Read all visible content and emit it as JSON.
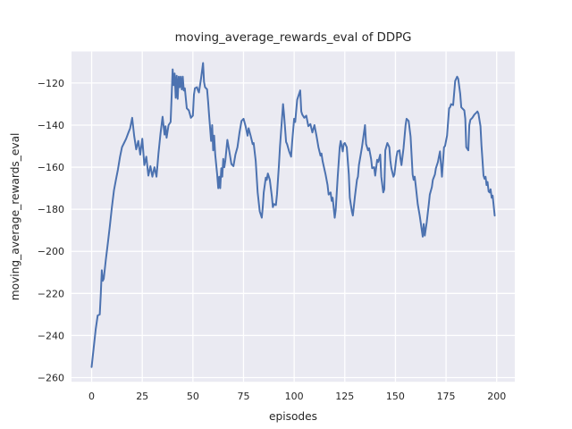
{
  "figure": {
    "background": "#ffffff"
  },
  "chart_data": {
    "type": "line",
    "title": "moving_average_rewards_eval of DDPG",
    "xlabel": "episodes",
    "ylabel": "moving_average_rewards_eval",
    "legend": null,
    "grid": true,
    "plot_bg": "#eaeaf2",
    "grid_color": "#ffffff",
    "line_color": "#4c72b0",
    "text_color": "#262626",
    "xlim": [
      -9.95,
      208.95
    ],
    "ylim": [
      -262,
      -105
    ],
    "xticks": [
      0,
      25,
      50,
      75,
      100,
      125,
      150,
      175,
      200
    ],
    "yticks": [
      -260,
      -240,
      -220,
      -200,
      -180,
      -160,
      -140,
      -120
    ],
    "points": [
      [
        0,
        -255
      ],
      [
        1,
        -246
      ],
      [
        2,
        -237
      ],
      [
        3,
        -230.5
      ],
      [
        4,
        -230
      ],
      [
        4.5,
        -221
      ],
      [
        5,
        -209
      ],
      [
        5.5,
        -214
      ],
      [
        6,
        -213
      ],
      [
        7,
        -204
      ],
      [
        8,
        -196
      ],
      [
        9,
        -188
      ],
      [
        10,
        -179
      ],
      [
        11,
        -171
      ],
      [
        12,
        -166
      ],
      [
        13,
        -161
      ],
      [
        14,
        -155
      ],
      [
        15,
        -150.5
      ],
      [
        16,
        -148.5
      ],
      [
        17,
        -146.5
      ],
      [
        18,
        -144
      ],
      [
        19,
        -141.5
      ],
      [
        20,
        -136.5
      ],
      [
        21,
        -145
      ],
      [
        22,
        -151.5
      ],
      [
        23,
        -147.5
      ],
      [
        24,
        -154
      ],
      [
        25,
        -146.5
      ],
      [
        26,
        -159
      ],
      [
        27,
        -155
      ],
      [
        28,
        -164
      ],
      [
        29,
        -159.5
      ],
      [
        30,
        -164.5
      ],
      [
        31,
        -160
      ],
      [
        32,
        -164.5
      ],
      [
        33,
        -153.5
      ],
      [
        34,
        -144
      ],
      [
        35,
        -136
      ],
      [
        36,
        -144.5
      ],
      [
        36.5,
        -140.5
      ],
      [
        37,
        -146
      ],
      [
        38,
        -140
      ],
      [
        39,
        -138.5
      ],
      [
        40,
        -113.5
      ],
      [
        40.5,
        -121
      ],
      [
        41,
        -115.5
      ],
      [
        41.5,
        -127
      ],
      [
        42,
        -116.5
      ],
      [
        42.5,
        -127.5
      ],
      [
        43,
        -117
      ],
      [
        43.5,
        -122
      ],
      [
        44,
        -117
      ],
      [
        44.5,
        -123
      ],
      [
        45,
        -117
      ],
      [
        45.5,
        -123.5
      ],
      [
        46,
        -122.5
      ],
      [
        47,
        -132
      ],
      [
        48,
        -133
      ],
      [
        49,
        -136.5
      ],
      [
        50,
        -135.5
      ],
      [
        50.5,
        -125.5
      ],
      [
        51,
        -122.5
      ],
      [
        52,
        -122
      ],
      [
        52.5,
        -123.5
      ],
      [
        53,
        -124.5
      ],
      [
        54,
        -118
      ],
      [
        55,
        -110.5
      ],
      [
        55.5,
        -119.5
      ],
      [
        56,
        -122
      ],
      [
        57,
        -123
      ],
      [
        57.5,
        -128.5
      ],
      [
        58,
        -135.5
      ],
      [
        59,
        -147.5
      ],
      [
        59.5,
        -140
      ],
      [
        60,
        -152
      ],
      [
        60.5,
        -145
      ],
      [
        61,
        -154
      ],
      [
        62,
        -163.5
      ],
      [
        62.5,
        -170
      ],
      [
        63,
        -164.5
      ],
      [
        63.5,
        -170
      ],
      [
        64,
        -160.5
      ],
      [
        64.5,
        -164.5
      ],
      [
        65,
        -156
      ],
      [
        65.5,
        -160
      ],
      [
        66,
        -157
      ],
      [
        67,
        -147
      ],
      [
        68,
        -152.5
      ],
      [
        69,
        -158.5
      ],
      [
        70,
        -159.5
      ],
      [
        71,
        -154
      ],
      [
        72,
        -150.5
      ],
      [
        73,
        -143.5
      ],
      [
        74,
        -138
      ],
      [
        75,
        -137
      ],
      [
        76,
        -140.5
      ],
      [
        77,
        -145
      ],
      [
        77.5,
        -141.5
      ],
      [
        78.5,
        -145
      ],
      [
        79.5,
        -149
      ],
      [
        80,
        -148.5
      ],
      [
        81,
        -157
      ],
      [
        82,
        -172
      ],
      [
        83,
        -181
      ],
      [
        84,
        -184
      ],
      [
        84.5,
        -179
      ],
      [
        85,
        -172
      ],
      [
        86,
        -165
      ],
      [
        86.5,
        -166
      ],
      [
        87,
        -163
      ],
      [
        88,
        -166
      ],
      [
        89,
        -174
      ],
      [
        89.5,
        -179
      ],
      [
        90,
        -177.5
      ],
      [
        91,
        -178
      ],
      [
        91.5,
        -173
      ],
      [
        92.5,
        -159
      ],
      [
        93,
        -150
      ],
      [
        93.5,
        -143.5
      ],
      [
        94.5,
        -130
      ],
      [
        95,
        -135
      ],
      [
        96,
        -148
      ],
      [
        96.5,
        -149
      ],
      [
        97.5,
        -152.5
      ],
      [
        98.5,
        -155
      ],
      [
        99,
        -148
      ],
      [
        100,
        -137
      ],
      [
        100.5,
        -138.5
      ],
      [
        101.5,
        -128
      ],
      [
        103,
        -123.5
      ],
      [
        103.5,
        -133.5
      ],
      [
        104,
        -135
      ],
      [
        105,
        -136.5
      ],
      [
        106,
        -135.5
      ],
      [
        107,
        -140.5
      ],
      [
        108,
        -139.5
      ],
      [
        109,
        -143.5
      ],
      [
        110,
        -140
      ],
      [
        111,
        -145
      ],
      [
        112,
        -150.5
      ],
      [
        113,
        -154.5
      ],
      [
        113.5,
        -153.5
      ],
      [
        114,
        -157
      ],
      [
        115.5,
        -163.5
      ],
      [
        116.5,
        -168.5
      ],
      [
        117,
        -173
      ],
      [
        118,
        -172
      ],
      [
        118.5,
        -176
      ],
      [
        119,
        -174.5
      ],
      [
        120,
        -184
      ],
      [
        120.5,
        -180.5
      ],
      [
        121.5,
        -165
      ],
      [
        122.5,
        -150.5
      ],
      [
        123,
        -147.5
      ],
      [
        124,
        -152.5
      ],
      [
        124.5,
        -149
      ],
      [
        125,
        -148.5
      ],
      [
        126,
        -150.5
      ],
      [
        127,
        -163.5
      ],
      [
        127.5,
        -174.5
      ],
      [
        128.5,
        -181
      ],
      [
        129,
        -183
      ],
      [
        130,
        -174
      ],
      [
        131,
        -166
      ],
      [
        131.5,
        -164.5
      ],
      [
        132,
        -159
      ],
      [
        133.5,
        -150.5
      ],
      [
        135,
        -140
      ],
      [
        135.5,
        -149
      ],
      [
        136.5,
        -152
      ],
      [
        137,
        -151
      ],
      [
        138,
        -156
      ],
      [
        138.5,
        -160.5
      ],
      [
        139.5,
        -160
      ],
      [
        140,
        -164
      ],
      [
        141,
        -156.5
      ],
      [
        141.5,
        -157.5
      ],
      [
        142.5,
        -154
      ],
      [
        143,
        -164.5
      ],
      [
        144,
        -172
      ],
      [
        144.5,
        -170.5
      ],
      [
        145,
        -152
      ],
      [
        146,
        -148.5
      ],
      [
        147,
        -150.5
      ],
      [
        147.5,
        -157
      ],
      [
        148,
        -160.5
      ],
      [
        149,
        -164.5
      ],
      [
        149.5,
        -163.5
      ],
      [
        150.5,
        -155
      ],
      [
        151,
        -152.5
      ],
      [
        152,
        -152
      ],
      [
        152.5,
        -156
      ],
      [
        153,
        -159
      ],
      [
        154,
        -151
      ],
      [
        155,
        -140
      ],
      [
        155.5,
        -137
      ],
      [
        156.5,
        -138
      ],
      [
        157.5,
        -145.5
      ],
      [
        158.5,
        -163.5
      ],
      [
        159,
        -166
      ],
      [
        159.5,
        -164.5
      ],
      [
        160,
        -168.5
      ],
      [
        161,
        -177.5
      ],
      [
        162,
        -183
      ],
      [
        163.5,
        -193
      ],
      [
        164,
        -187
      ],
      [
        164.5,
        -192.5
      ],
      [
        165.5,
        -186
      ],
      [
        166.5,
        -177.5
      ],
      [
        167,
        -173
      ],
      [
        168,
        -169.5
      ],
      [
        168.5,
        -166
      ],
      [
        169.5,
        -163.5
      ],
      [
        170,
        -160.5
      ],
      [
        171,
        -157.5
      ],
      [
        171.5,
        -155
      ],
      [
        172,
        -152.5
      ],
      [
        173,
        -164.5
      ],
      [
        174,
        -150.5
      ],
      [
        174.5,
        -150
      ],
      [
        175.5,
        -145
      ],
      [
        176.5,
        -132
      ],
      [
        177,
        -131.5
      ],
      [
        177.5,
        -130
      ],
      [
        178.5,
        -130.5
      ],
      [
        179.5,
        -119
      ],
      [
        180.5,
        -117
      ],
      [
        181,
        -118
      ],
      [
        182,
        -125
      ],
      [
        182.5,
        -131.5
      ],
      [
        183,
        -132
      ],
      [
        184,
        -133
      ],
      [
        184.5,
        -137
      ],
      [
        185,
        -150.5
      ],
      [
        186,
        -152
      ],
      [
        186.5,
        -140
      ],
      [
        187,
        -137.5
      ],
      [
        188,
        -136.5
      ],
      [
        189,
        -135
      ],
      [
        190,
        -134
      ],
      [
        190.5,
        -133.5
      ],
      [
        191,
        -134.5
      ],
      [
        192,
        -140.5
      ],
      [
        192.5,
        -149.5
      ],
      [
        193,
        -157
      ],
      [
        193.5,
        -164
      ],
      [
        194,
        -165.5
      ],
      [
        194.5,
        -164.5
      ],
      [
        195,
        -168.5
      ],
      [
        195.5,
        -167
      ],
      [
        196,
        -171.5
      ],
      [
        196.5,
        -172
      ],
      [
        197,
        -170.5
      ],
      [
        197.5,
        -174.5
      ],
      [
        198,
        -173.5
      ],
      [
        198.5,
        -178
      ],
      [
        199,
        -183
      ]
    ]
  }
}
